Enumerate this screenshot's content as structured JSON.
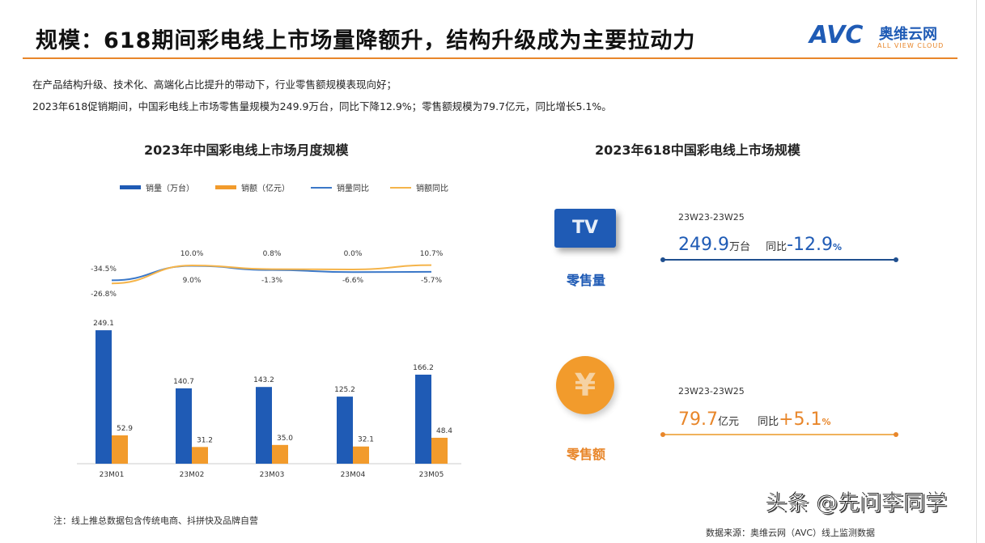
{
  "header": {
    "title": "规模：618期间彩电线上市场量降额升，结构升级成为主要拉动力",
    "logo": {
      "brand": "AVC",
      "cn": "奥维云网",
      "en": "ALL VIEW CLOUD"
    }
  },
  "intro": [
    "在产品结构升级、技术化、高端化占比提升的带动下，行业零售额规模表现向好；",
    "2023年618促销期间，中国彩电线上市场零售量规模为249.9万台，同比下降12.9%；零售额规模为79.7亿元，同比增长5.1%。"
  ],
  "colors": {
    "blue": "#1f5bb5",
    "orange": "#f29b2c",
    "accent": "#e8862a"
  },
  "chart_data": {
    "type": "bar+line",
    "title": "2023年中国彩电线上市场月度规模",
    "categories": [
      "23M01",
      "23M02",
      "23M03",
      "23M04",
      "23M05"
    ],
    "legend_position": "top",
    "series": [
      {
        "name": "销量（万台）",
        "type": "bar",
        "values": [
          249.1,
          140.7,
          143.2,
          125.2,
          166.2
        ],
        "labels": [
          "249.1",
          "140.7",
          "143.2",
          "125.2",
          "166.2"
        ]
      },
      {
        "name": "销额（亿元）",
        "type": "bar",
        "values": [
          52.9,
          31.2,
          35.0,
          32.1,
          48.4
        ],
        "labels": [
          "52.9",
          "31.2",
          "35.0",
          "32.1",
          "48.4"
        ]
      },
      {
        "name": "销量同比",
        "type": "line",
        "unit": "%",
        "values": [
          -26.8,
          9.0,
          -1.3,
          -6.6,
          -5.7
        ],
        "labels": [
          "-26.8%",
          "9.0%",
          "-1.3%",
          "-6.6%",
          "-5.7%"
        ]
      },
      {
        "name": "销额同比",
        "type": "line",
        "unit": "%",
        "values": [
          -34.5,
          10.0,
          0.8,
          0.0,
          10.7
        ],
        "labels": [
          "-34.5%",
          "10.0%",
          "0.8%",
          "0.0%",
          "10.7%"
        ]
      }
    ],
    "grid": false
  },
  "right": {
    "title": "2023年618中国彩电线上市场规模",
    "volume": {
      "icon": "TV",
      "label": "零售量",
      "period": "23W23-23W25",
      "value": "249.9",
      "unit": "万台",
      "yoy_label": "同比",
      "yoy": "-12.9",
      "pct": "%"
    },
    "revenue": {
      "icon": "¥",
      "label": "零售额",
      "period": "23W23-23W25",
      "value": "79.7",
      "unit": "亿元",
      "yoy_label": "同比",
      "yoy": "+5.1",
      "pct": "%"
    }
  },
  "footer": {
    "note": "注：线上推总数据包含传统电商、抖拼快及品牌自营",
    "source": "数据来源：奥维云网（AVC）线上监测数据",
    "watermark": "头条 @先问李同学"
  }
}
